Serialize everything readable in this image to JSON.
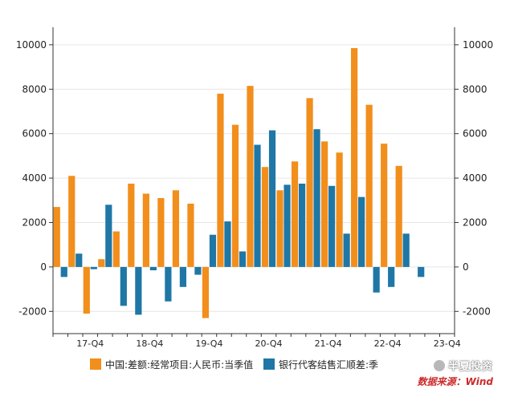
{
  "chart_data": {
    "type": "bar",
    "categories": [
      "17-Q2",
      "17-Q3",
      "17-Q4",
      "18-Q1",
      "18-Q2",
      "18-Q3",
      "18-Q4",
      "19-Q1",
      "19-Q2",
      "19-Q3",
      "19-Q4",
      "20-Q1",
      "20-Q2",
      "20-Q3",
      "20-Q4",
      "21-Q1",
      "21-Q2",
      "21-Q3",
      "21-Q4",
      "22-Q1",
      "22-Q2",
      "22-Q3",
      "22-Q4",
      "23-Q1",
      "23-Q2",
      "23-Q3",
      "23-Q4"
    ],
    "x_tick_labels": [
      "17-Q4",
      "18-Q4",
      "19-Q4",
      "20-Q4",
      "21-Q4",
      "22-Q4",
      "23-Q4"
    ],
    "x_tick_indices": [
      2,
      6,
      10,
      14,
      18,
      22,
      26
    ],
    "series": [
      {
        "name": "中国:差额:经常项目:人民币:当季值",
        "color": "#f28e1c",
        "values": [
          2700,
          4100,
          -2100,
          350,
          1600,
          3750,
          3300,
          3100,
          3450,
          2850,
          -2300,
          7800,
          6400,
          8150,
          4500,
          3450,
          4750,
          7600,
          5650,
          5150,
          9850,
          7300,
          5550,
          4550,
          null,
          null,
          null
        ]
      },
      {
        "name": "银行代客结售汇顺差:季",
        "color": "#1f77a6",
        "values": [
          -450,
          600,
          -100,
          2800,
          -1750,
          -2150,
          -150,
          -1550,
          -900,
          -350,
          1450,
          2050,
          700,
          5500,
          6150,
          3700,
          3750,
          6200,
          3650,
          1500,
          3150,
          -1150,
          -900,
          1500,
          -450,
          null,
          null
        ]
      }
    ],
    "ylim": [
      -3000,
      10500
    ],
    "yticks": [
      -2000,
      0,
      2000,
      4000,
      6000,
      8000,
      10000
    ],
    "grid": "horizontal",
    "legend_position": "bottom"
  },
  "legend": {
    "items": [
      "中国:差额:经常项目:人民币:当季值",
      "银行代客结售汇顺差:季"
    ]
  },
  "watermark": {
    "brand": "半夏投资",
    "source": "数据来源：Wind"
  }
}
